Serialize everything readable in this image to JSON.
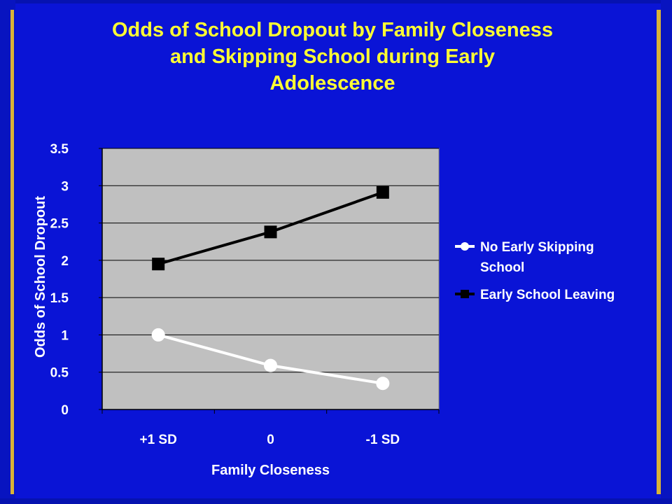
{
  "title_lines": [
    "Odds of School Dropout by Family Closeness",
    "and Skipping School during Early",
    "Adolescence"
  ],
  "colors": {
    "background": "#0a14d6",
    "title": "#ffff33",
    "plot_area": "#c0c0c0",
    "accent_bar": "#d9b338",
    "series_no_skipping": "#ffffff",
    "series_early_leaving": "#000000"
  },
  "chart_data": {
    "type": "line",
    "title": "Odds of School Dropout by Family Closeness and Skipping School during Early Adolescence",
    "xlabel": "Family Closeness",
    "ylabel": "Odds of School Dropout",
    "categories": [
      "+1 SD",
      "0",
      "-1 SD"
    ],
    "ylim": [
      0,
      3.5
    ],
    "yticks": [
      0,
      0.5,
      1,
      1.5,
      2,
      2.5,
      3,
      3.5
    ],
    "ytick_labels": [
      "0",
      "0.5",
      "1",
      "1.5",
      "2",
      "2.5",
      "3",
      "3.5"
    ],
    "grid": true,
    "legend_position": "right",
    "series": [
      {
        "name_lines": [
          "No Early Skipping",
          "School"
        ],
        "marker": "circle",
        "color": "#ffffff",
        "values": [
          1.0,
          0.59,
          0.35
        ]
      },
      {
        "name_lines": [
          "Early School Leaving"
        ],
        "marker": "square",
        "color": "#000000",
        "values": [
          1.95,
          2.38,
          2.91
        ]
      }
    ]
  }
}
